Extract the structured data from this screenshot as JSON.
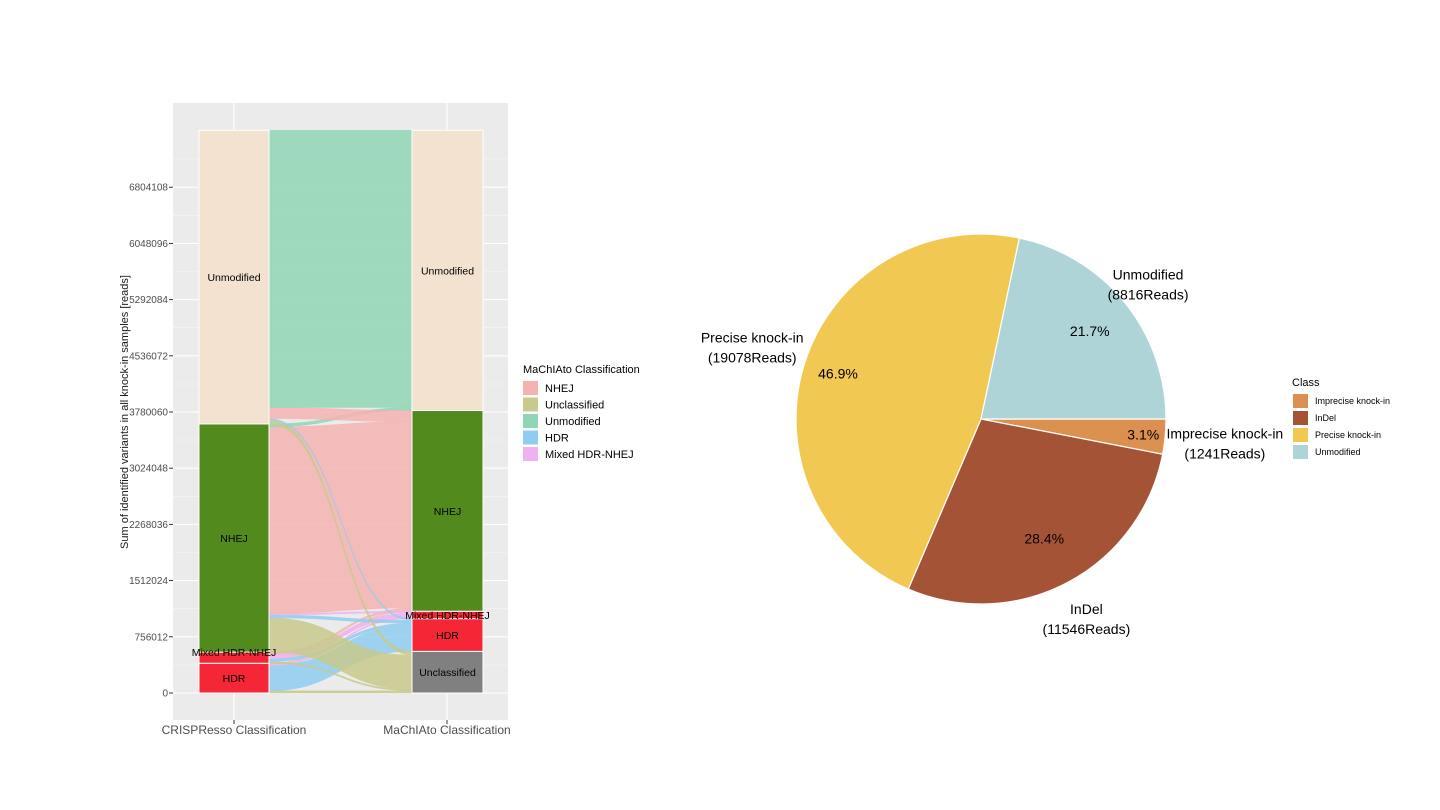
{
  "chart_data": [
    {
      "type": "alluvial",
      "xlabel": "",
      "ylabel": "Sum of identified variants in all knock-in samples [reads]",
      "ylim": [
        0,
        7560120
      ],
      "yticks": [
        0,
        756012,
        1512024,
        2268036,
        3024048,
        3780060,
        4536072,
        5292084,
        6048096,
        6804108
      ],
      "ytick_labels": [
        "0",
        "756012",
        "1512024",
        "2268036",
        "3024048",
        "3780060",
        "4536072",
        "5292084",
        "6048096",
        "6804108"
      ],
      "axes": [
        "CRISPResso Classification",
        "MaChIAto Classification"
      ],
      "grid": true,
      "legend": {
        "title": "MaChIAto Classification",
        "position": "right",
        "entries": [
          {
            "label": "NHEJ",
            "color": "#F4B3B0"
          },
          {
            "label": "Unclassified",
            "color": "#C8C98C"
          },
          {
            "label": "Unmodified",
            "color": "#90D5B5"
          },
          {
            "label": "HDR",
            "color": "#8FCDF0"
          },
          {
            "label": "Mixed HDR-NHEJ",
            "color": "#EFB1EF"
          }
        ]
      },
      "left_strata": [
        {
          "label": "HDR",
          "value": 400000,
          "color": "#F52736"
        },
        {
          "label": "Mixed HDR-NHEJ",
          "value": 150000,
          "color": "#F52736"
        },
        {
          "label": "NHEJ",
          "value": 3070000,
          "color": "#538A1D"
        },
        {
          "label": "Unmodified",
          "value": 3950000,
          "color": "#F2E2CF"
        }
      ],
      "right_strata": [
        {
          "label": "Unclassified",
          "value": 560000,
          "color": "#808080"
        },
        {
          "label": "HDR",
          "value": 440000,
          "color": "#F52736"
        },
        {
          "label": "Mixed HDR-NHEJ",
          "value": 100000,
          "color": "#F52736"
        },
        {
          "label": "NHEJ",
          "value": 2700000,
          "color": "#538A1D"
        },
        {
          "label": "Unmodified",
          "value": 3770000,
          "color": "#F2E2CF"
        }
      ],
      "flows": [
        {
          "from": "HDR",
          "to": "Unclassified",
          "value": 30000,
          "fill": "Unclassified"
        },
        {
          "from": "HDR",
          "to": "HDR",
          "value": 340000,
          "fill": "HDR"
        },
        {
          "from": "HDR",
          "to": "Mixed HDR-NHEJ",
          "value": 20000,
          "fill": "Mixed HDR-NHEJ"
        },
        {
          "from": "HDR",
          "to": "NHEJ",
          "value": 10000,
          "fill": "NHEJ"
        },
        {
          "from": "Mixed HDR-NHEJ",
          "to": "Unclassified",
          "value": 20000,
          "fill": "Unclassified"
        },
        {
          "from": "Mixed HDR-NHEJ",
          "to": "HDR",
          "value": 40000,
          "fill": "HDR"
        },
        {
          "from": "Mixed HDR-NHEJ",
          "to": "Mixed HDR-NHEJ",
          "value": 60000,
          "fill": "Mixed HDR-NHEJ"
        },
        {
          "from": "Mixed HDR-NHEJ",
          "to": "NHEJ",
          "value": 30000,
          "fill": "NHEJ"
        },
        {
          "from": "NHEJ",
          "to": "Unclassified",
          "value": 460000,
          "fill": "Unclassified"
        },
        {
          "from": "NHEJ",
          "to": "HDR",
          "value": 40000,
          "fill": "HDR"
        },
        {
          "from": "NHEJ",
          "to": "Mixed HDR-NHEJ",
          "value": 20000,
          "fill": "Mixed HDR-NHEJ"
        },
        {
          "from": "NHEJ",
          "to": "NHEJ",
          "value": 2510000,
          "fill": "NHEJ"
        },
        {
          "from": "NHEJ",
          "to": "Unmodified",
          "value": 40000,
          "fill": "Unmodified"
        },
        {
          "from": "Unmodified",
          "to": "Unclassified",
          "value": 50000,
          "fill": "Unclassified"
        },
        {
          "from": "Unmodified",
          "to": "HDR",
          "value": 20000,
          "fill": "HDR"
        },
        {
          "from": "Unmodified",
          "to": "NHEJ",
          "value": 150000,
          "fill": "NHEJ"
        },
        {
          "from": "Unmodified",
          "to": "Unmodified",
          "value": 3730000,
          "fill": "Unmodified"
        }
      ]
    },
    {
      "type": "pie",
      "legend": {
        "title": "Class",
        "position": "right",
        "entries": [
          {
            "label": "Imprecise knock-in",
            "color": "#DC904F"
          },
          {
            "label": "InDel",
            "color": "#A55336"
          },
          {
            "label": "Precise knock-in",
            "color": "#F1C851"
          },
          {
            "label": "Unmodified",
            "color": "#AED4D8"
          }
        ]
      },
      "slices": [
        {
          "label": "Imprecise knock-in",
          "reads": 1241,
          "reads_label": "(1241Reads)",
          "percent_label": "3.1%",
          "color": "#DC904F"
        },
        {
          "label": "InDel",
          "reads": 11546,
          "reads_label": "(11546Reads)",
          "percent_label": "28.4%",
          "color": "#A55336"
        },
        {
          "label": "Precise knock-in",
          "reads": 19078,
          "reads_label": "(19078Reads)",
          "percent_label": "46.9%",
          "color": "#F1C851"
        },
        {
          "label": "Unmodified",
          "reads": 8816,
          "reads_label": "(8816Reads)",
          "percent_label": "21.7%",
          "color": "#AED4D8"
        }
      ]
    }
  ]
}
